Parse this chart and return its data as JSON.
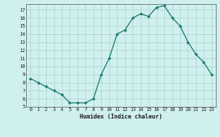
{
  "x": [
    0,
    1,
    2,
    3,
    4,
    5,
    6,
    7,
    8,
    9,
    10,
    11,
    12,
    13,
    14,
    15,
    16,
    17,
    18,
    19,
    20,
    21,
    22,
    23
  ],
  "y": [
    8.5,
    8.0,
    7.5,
    7.0,
    6.5,
    5.5,
    5.5,
    5.5,
    6.0,
    9.0,
    11.0,
    14.0,
    14.5,
    16.0,
    16.5,
    16.2,
    17.3,
    17.5,
    16.0,
    15.0,
    13.0,
    11.5,
    10.5,
    9.0
  ],
  "xlabel": "Humidex (Indice chaleur)",
  "xlim": [
    -0.5,
    23.5
  ],
  "ylim": [
    5,
    17.7
  ],
  "yticks": [
    5,
    6,
    7,
    8,
    9,
    10,
    11,
    12,
    13,
    14,
    15,
    16,
    17
  ],
  "xticks": [
    0,
    1,
    2,
    3,
    4,
    5,
    6,
    7,
    8,
    9,
    10,
    11,
    12,
    13,
    14,
    15,
    16,
    17,
    18,
    19,
    20,
    21,
    22,
    23
  ],
  "line_color": "#1f7a6e",
  "marker_color": "#1f7a6e",
  "bg_color": "#cff0ee",
  "grid_color": "#b0d8d4"
}
